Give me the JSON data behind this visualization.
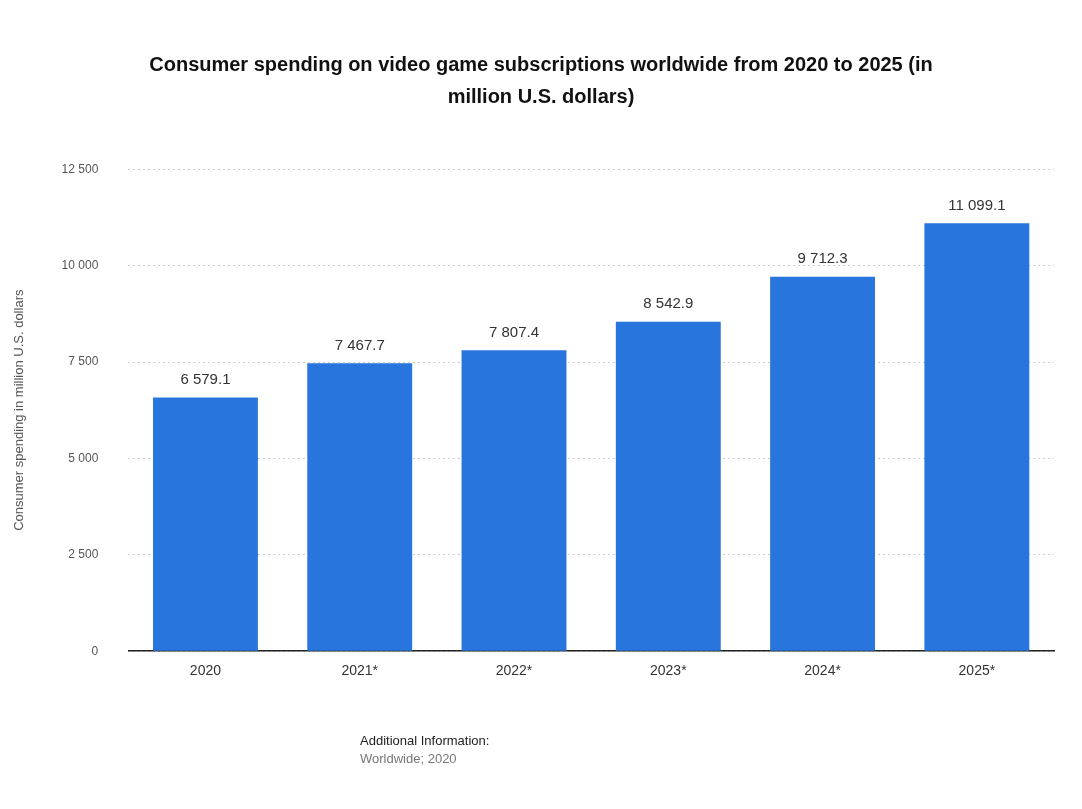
{
  "chart_data": {
    "type": "bar",
    "title": "Consumer spending on video game subscriptions worldwide from 2020 to 2025 (in million U.S. dollars)",
    "ylabel": "Consumer spending in million U.S. dollars",
    "categories": [
      "2020",
      "2021*",
      "2022*",
      "2023*",
      "2024*",
      "2025*"
    ],
    "values": [
      6579.1,
      7467.7,
      7807.4,
      8542.9,
      9712.3,
      11099.1
    ],
    "value_labels": [
      "6 579.1",
      "7 467.7",
      "7 807.4",
      "8 542.9",
      "9 712.3",
      "11 099.1"
    ],
    "color": "#2876dd",
    "ylim": [
      0,
      12500
    ],
    "yticks": [
      0,
      {
        "value": 2500,
        "label": "2 500"
      },
      {
        "value": 5000,
        "label": "5 000"
      },
      {
        "value": 7500,
        "label": "7 500"
      },
      {
        "value": 10000,
        "label": "10 000"
      },
      {
        "value": 12500,
        "label": "12 500"
      }
    ],
    "grid": "y",
    "annotations": [
      "Additional Information:",
      "Worldwide; 2020"
    ]
  }
}
